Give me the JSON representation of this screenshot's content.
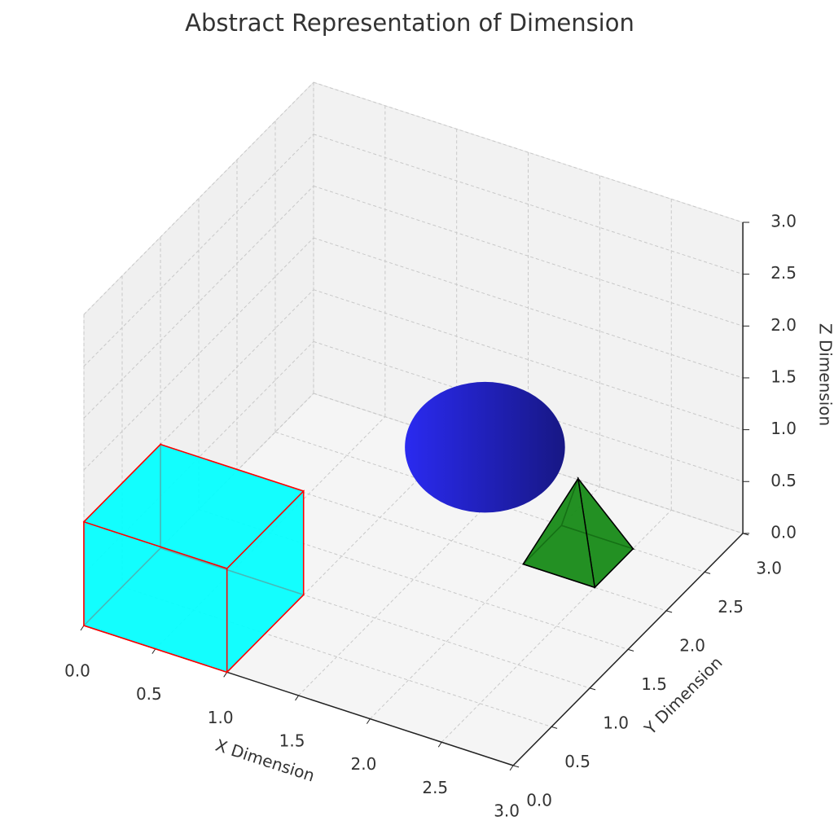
{
  "chart_data": {
    "type": "scene3d",
    "title": "Abstract Representation of Dimension",
    "xlabel": "X Dimension",
    "ylabel": "Y Dimension",
    "zlabel": "Z Dimension",
    "xlim": [
      0,
      3
    ],
    "ylim": [
      0,
      3
    ],
    "zlim": [
      0,
      3
    ],
    "xticks": [
      {
        "value": 0,
        "label": "0.0"
      },
      {
        "value": 0.5,
        "label": "0.5"
      },
      {
        "value": 1,
        "label": "1.0"
      },
      {
        "value": 1.5,
        "label": "1.5"
      },
      {
        "value": 2,
        "label": "2.0"
      },
      {
        "value": 2.5,
        "label": "2.5"
      },
      {
        "value": 3,
        "label": "3.0"
      }
    ],
    "yticks": [
      {
        "value": 0,
        "label": "0.0"
      },
      {
        "value": 0.5,
        "label": "0.5"
      },
      {
        "value": 1,
        "label": "1.0"
      },
      {
        "value": 1.5,
        "label": "1.5"
      },
      {
        "value": 2,
        "label": "2.0"
      },
      {
        "value": 2.5,
        "label": "2.5"
      },
      {
        "value": 3,
        "label": "3.0"
      }
    ],
    "zticks": [
      {
        "value": 0,
        "label": "0.0"
      },
      {
        "value": 0.5,
        "label": "0.5"
      },
      {
        "value": 1,
        "label": "1.0"
      },
      {
        "value": 1.5,
        "label": "1.5"
      },
      {
        "value": 2,
        "label": "2.0"
      },
      {
        "value": 2.5,
        "label": "2.5"
      },
      {
        "value": 3,
        "label": "3.0"
      }
    ],
    "grid": true,
    "shapes": [
      {
        "kind": "cube",
        "origin": [
          0,
          0,
          0
        ],
        "size": 1,
        "color": "#00ffff",
        "edgecolor": "#ff0000"
      },
      {
        "kind": "sphere",
        "center": [
          2,
          1.5,
          1.5
        ],
        "radius": 0.75,
        "color": "#2a2af0"
      },
      {
        "kind": "pyramid",
        "origin": [
          2,
          2,
          0
        ],
        "size": 0.5,
        "height": 0.75,
        "color": "#1a8c1a",
        "edgecolor": "#000000"
      }
    ]
  }
}
